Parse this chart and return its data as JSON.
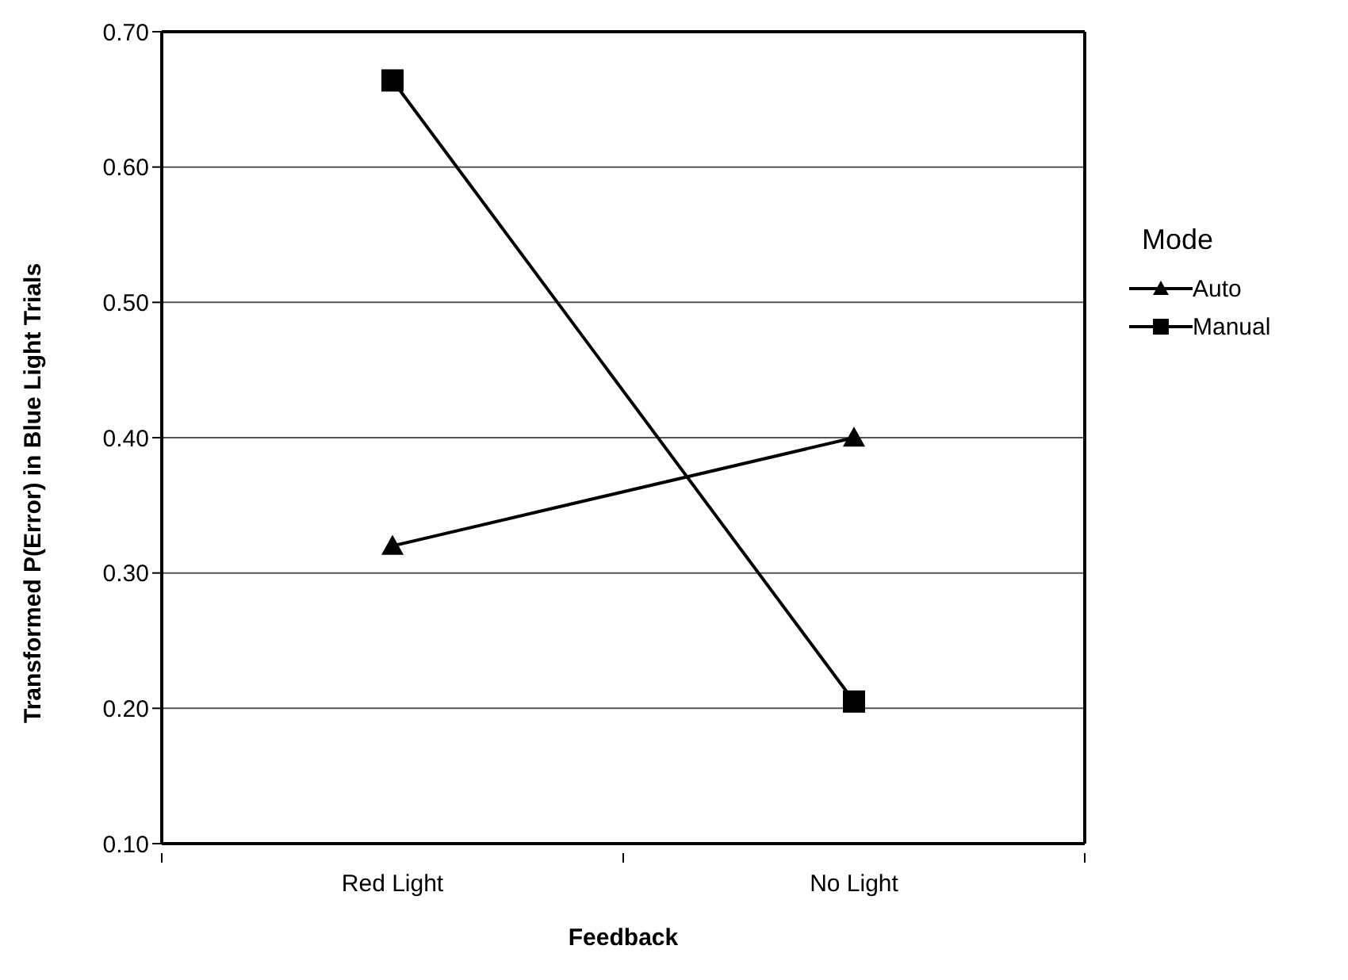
{
  "chart_data": {
    "type": "line",
    "xlabel": "Feedback",
    "ylabel": "Transformed P(Error) in Blue Light Trials",
    "legend_title": "Mode",
    "categories": [
      "Red Light",
      "No Light"
    ],
    "series": [
      {
        "name": "Auto",
        "color": "#000000",
        "marker": "triangle",
        "values": [
          0.32,
          0.4
        ]
      },
      {
        "name": "Manual",
        "color": "#000000",
        "marker": "square",
        "values": [
          0.664,
          0.205
        ]
      }
    ],
    "ylim": [
      0.1,
      0.7
    ],
    "yticks": [
      {
        "value": 0.1,
        "label": "0.10"
      },
      {
        "value": 0.2,
        "label": "0.20"
      },
      {
        "value": 0.3,
        "label": "0.30"
      },
      {
        "value": 0.4,
        "label": "0.40"
      },
      {
        "value": 0.5,
        "label": "0.50"
      },
      {
        "value": 0.6,
        "label": "0.60"
      },
      {
        "value": 0.7,
        "label": "0.70"
      }
    ],
    "grid": "y",
    "legend": "right",
    "line_style": "solid"
  }
}
